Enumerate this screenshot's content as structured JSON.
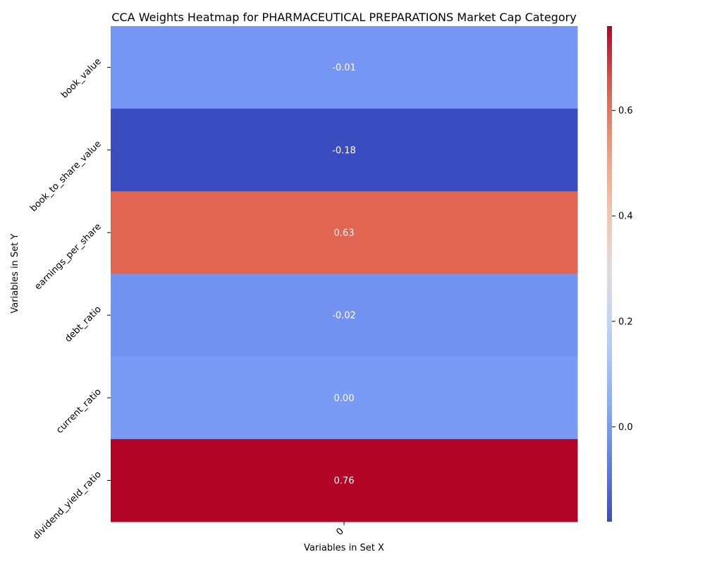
{
  "chart_data": {
    "type": "heatmap",
    "title": "CCA Weights Heatmap for PHARMACEUTICAL PREPARATIONS Market Cap Category",
    "xlabel": "Variables in Set X",
    "ylabel": "Variables in Set Y",
    "x_categories": [
      "0"
    ],
    "y_categories": [
      "book_value",
      "book_to_share_value",
      "earnings_per_share",
      "debt_ratio",
      "current_ratio",
      "dividend_yield_ratio"
    ],
    "values": [
      [
        -0.01
      ],
      [
        -0.18
      ],
      [
        0.63
      ],
      [
        -0.02
      ],
      [
        0.0
      ],
      [
        0.76
      ]
    ],
    "annotations": [
      "-0.01",
      "-0.18",
      "0.63",
      "-0.02",
      "0.00",
      "0.76"
    ],
    "colormap": "coolwarm",
    "vmin": -0.18,
    "vmax": 0.76,
    "colorbar_ticks": [
      0.0,
      0.2,
      0.4,
      0.6
    ],
    "colorbar_tick_labels": [
      "0.0",
      "0.2",
      "0.4",
      "0.6"
    ]
  }
}
